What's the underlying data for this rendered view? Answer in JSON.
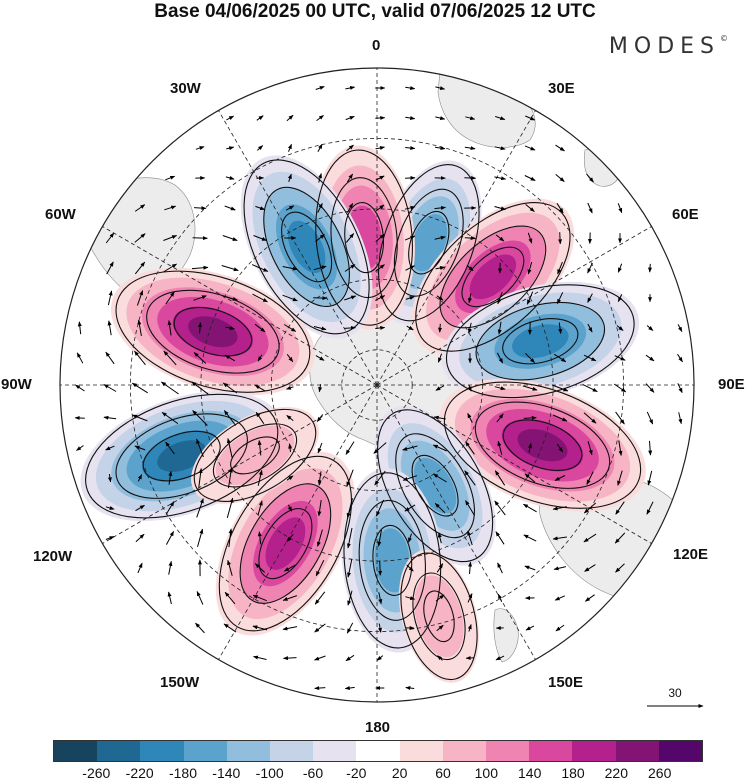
{
  "title": "Base 04/06/2025 00 UTC, valid 07/06/2025 12 UTC",
  "brand": "MODES",
  "brand_mark": "©",
  "lon_labels": {
    "n0": "0",
    "e30": "30E",
    "e60": "60E",
    "e90": "90E",
    "e120": "120E",
    "e150": "150E",
    "s180": "180",
    "w150": "150W",
    "w120": "120W",
    "w90": "90W",
    "w60": "60W",
    "w30": "30W"
  },
  "reference_vector": "30",
  "colorbar": {
    "colors": [
      "#16445f",
      "#1f6894",
      "#2f86b8",
      "#5ba3cc",
      "#91bedd",
      "#c4d3e8",
      "#e6e2f0",
      "#ffffff",
      "#fbdcdc",
      "#f6b4c4",
      "#ef84b2",
      "#d9479f",
      "#b4208c",
      "#841474",
      "#55066a"
    ],
    "labels": [
      "-260",
      "-220",
      "-180",
      "-140",
      "-100",
      "-60",
      "-20",
      "20",
      "60",
      "100",
      "140",
      "180",
      "220",
      "260"
    ]
  },
  "anomaly_centers": [
    {
      "lon": 20,
      "lat": -47,
      "value": -140
    },
    {
      "lon": -5,
      "lat": -48,
      "value": 170
    },
    {
      "lon": -27,
      "lat": -46,
      "value": -200
    },
    {
      "lon": 47,
      "lat": -45,
      "value": 200
    },
    {
      "lon": 75,
      "lat": -42,
      "value": -210
    },
    {
      "lon": -72,
      "lat": -41,
      "value": 230
    },
    {
      "lon": 110,
      "lat": -40,
      "value": 240
    },
    {
      "lon": 150,
      "lat": -57,
      "value": -150
    },
    {
      "lon": -110,
      "lat": -31,
      "value": -230
    },
    {
      "lon": -150,
      "lat": -38,
      "value": 210
    },
    {
      "lon": 175,
      "lat": -40,
      "value": -170
    },
    {
      "lon": -120,
      "lat": -50,
      "value": 70
    },
    {
      "lon": 165,
      "lat": -22,
      "value": 60
    }
  ]
}
